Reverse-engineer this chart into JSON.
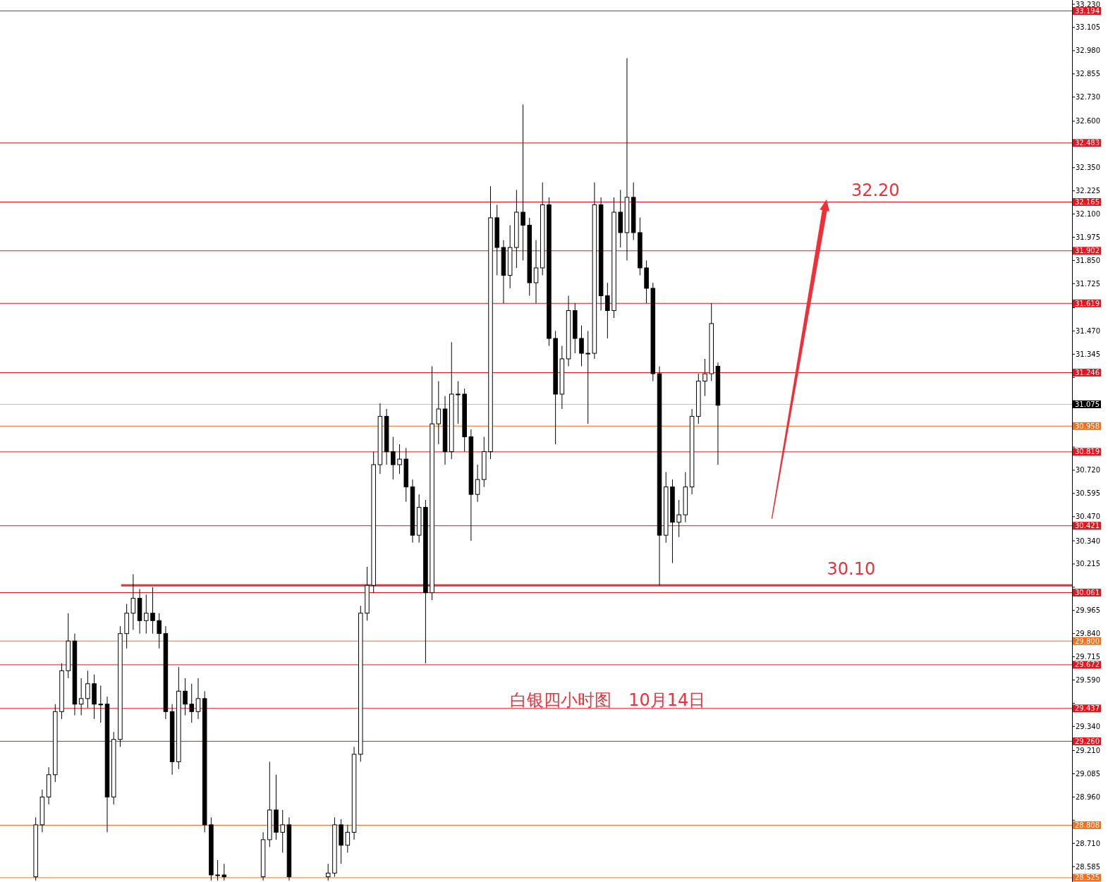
{
  "chart_data": {
    "type": "candlestick",
    "title": "白银四小时图　10月14日",
    "categories": [
      null,
      null,
      null,
      null,
      null,
      null,
      null,
      null,
      null,
      null,
      null,
      null,
      null,
      null,
      null,
      null,
      null,
      null,
      null,
      null,
      null,
      null,
      null,
      null,
      null,
      null,
      null,
      null,
      null,
      null,
      null,
      null,
      null,
      null,
      null,
      null,
      null,
      null,
      null,
      null,
      null,
      null,
      null,
      null,
      null,
      null,
      null,
      null,
      null,
      null,
      null,
      null,
      null,
      null,
      null,
      null,
      null,
      null,
      null,
      null,
      null,
      null,
      null,
      null,
      null,
      null,
      null,
      null,
      null,
      null,
      null,
      null,
      null,
      null,
      null,
      null,
      null,
      null,
      null,
      null,
      null,
      null,
      null,
      null,
      null,
      null,
      null,
      null,
      null,
      null,
      null,
      null,
      null,
      null,
      null,
      null,
      null,
      null,
      null,
      null,
      null,
      null,
      null,
      null,
      null,
      null,
      null,
      null,
      null,
      null,
      null,
      null,
      null,
      null,
      null,
      null,
      null,
      null,
      null,
      null,
      null,
      null,
      null,
      null,
      null,
      null,
      null,
      null,
      null,
      null,
      null,
      null,
      null,
      null,
      null,
      null,
      null,
      null,
      null,
      null,
      null,
      null,
      null,
      null,
      null,
      null,
      null,
      null,
      null,
      null,
      null,
      null,
      null,
      null,
      null,
      null,
      null,
      null,
      null,
      null,
      null,
      null,
      null,
      null,
      null
    ],
    "ohlc": [
      null,
      null,
      null,
      null,
      null,
      [
        28.53,
        28.85,
        28.51,
        28.81
      ],
      [
        28.81,
        29.0,
        28.77,
        28.96
      ],
      [
        28.96,
        29.12,
        28.92,
        29.08
      ],
      [
        29.08,
        29.46,
        29.04,
        29.42
      ],
      [
        29.42,
        29.68,
        29.38,
        29.64
      ],
      [
        29.64,
        29.95,
        29.6,
        29.8
      ],
      [
        29.8,
        29.84,
        29.4,
        29.46
      ],
      [
        29.46,
        29.6,
        29.4,
        29.49
      ],
      [
        29.49,
        29.64,
        29.44,
        29.57
      ],
      [
        29.57,
        29.62,
        29.38,
        29.46
      ],
      [
        29.46,
        29.56,
        29.36,
        29.46
      ],
      [
        29.46,
        29.5,
        28.77,
        28.96
      ],
      [
        28.96,
        29.31,
        28.92,
        29.27
      ],
      [
        29.27,
        29.88,
        29.23,
        29.84
      ],
      [
        29.84,
        30.0,
        29.76,
        29.95
      ],
      [
        29.95,
        30.16,
        29.86,
        30.03
      ],
      [
        30.03,
        30.08,
        29.84,
        29.91
      ],
      [
        29.91,
        30.05,
        29.84,
        29.95
      ],
      [
        29.95,
        30.09,
        29.84,
        29.91
      ],
      [
        29.91,
        29.95,
        29.76,
        29.84
      ],
      [
        29.84,
        29.88,
        29.38,
        29.42
      ],
      [
        29.42,
        29.46,
        29.08,
        29.15
      ],
      [
        29.15,
        29.66,
        29.11,
        29.53
      ],
      [
        29.53,
        29.6,
        29.4,
        29.46
      ],
      [
        29.46,
        29.57,
        29.36,
        29.42
      ],
      [
        29.42,
        29.6,
        29.38,
        29.49
      ],
      [
        29.49,
        29.53,
        28.77,
        28.81
      ],
      [
        28.81,
        28.85,
        28.51,
        28.54
      ],
      [
        28.54,
        28.62,
        28.51,
        28.54
      ],
      [
        28.54,
        28.6,
        28.51,
        28.53
      ],
      null,
      null,
      null,
      null,
      null,
      [
        28.53,
        28.77,
        28.51,
        28.73
      ],
      [
        28.73,
        29.15,
        28.69,
        28.89
      ],
      [
        28.89,
        29.08,
        28.73,
        28.77
      ],
      [
        28.77,
        28.89,
        28.66,
        28.81
      ],
      [
        28.81,
        28.85,
        28.51,
        28.53
      ],
      null,
      null,
      null,
      null,
      null,
      [
        28.53,
        28.6,
        28.51,
        28.55
      ],
      [
        28.55,
        28.85,
        28.53,
        28.81
      ],
      [
        28.81,
        28.84,
        28.6,
        28.7
      ],
      [
        28.7,
        28.81,
        28.66,
        28.77
      ],
      [
        28.77,
        29.23,
        28.73,
        29.19
      ],
      [
        29.19,
        29.99,
        29.15,
        29.95
      ],
      [
        29.95,
        30.2,
        29.91,
        30.1
      ],
      [
        30.1,
        30.82,
        30.06,
        30.75
      ],
      [
        30.75,
        31.08,
        30.7,
        31.01
      ],
      [
        31.01,
        31.05,
        30.75,
        30.82
      ],
      [
        30.82,
        30.9,
        30.67,
        30.75
      ],
      [
        30.75,
        30.86,
        30.7,
        30.78
      ],
      [
        30.78,
        30.84,
        30.55,
        30.63
      ],
      [
        30.63,
        30.67,
        30.33,
        30.37
      ],
      [
        30.37,
        30.59,
        30.33,
        30.52
      ],
      [
        30.52,
        30.56,
        29.68,
        30.06
      ],
      [
        30.06,
        31.28,
        30.02,
        30.97
      ],
      [
        30.97,
        31.2,
        30.86,
        31.05
      ],
      [
        31.05,
        31.12,
        30.75,
        30.82
      ],
      [
        30.82,
        31.41,
        30.78,
        31.13
      ],
      [
        31.13,
        31.2,
        30.97,
        31.13
      ],
      [
        31.13,
        31.16,
        30.82,
        30.9
      ],
      [
        30.9,
        30.94,
        30.34,
        30.59
      ],
      [
        30.59,
        30.75,
        30.55,
        30.67
      ],
      [
        30.67,
        30.9,
        30.63,
        30.82
      ],
      [
        30.82,
        32.25,
        30.78,
        32.08
      ],
      [
        32.08,
        32.15,
        31.77,
        31.92
      ],
      [
        31.92,
        31.96,
        31.62,
        31.77
      ],
      [
        31.77,
        32.04,
        31.7,
        31.92
      ],
      [
        31.92,
        32.23,
        31.81,
        32.11
      ],
      [
        32.11,
        32.69,
        31.85,
        32.04
      ],
      [
        32.04,
        32.08,
        31.66,
        31.73
      ],
      [
        31.73,
        31.96,
        31.62,
        31.81
      ],
      [
        31.81,
        32.27,
        31.77,
        32.15
      ],
      [
        32.15,
        32.19,
        31.39,
        31.43
      ],
      [
        31.43,
        31.47,
        30.86,
        31.13
      ],
      [
        31.13,
        31.39,
        31.05,
        31.32
      ],
      [
        31.32,
        31.66,
        31.28,
        31.58
      ],
      [
        31.58,
        31.62,
        31.35,
        31.43
      ],
      [
        31.43,
        31.5,
        31.28,
        31.35
      ],
      [
        31.35,
        31.47,
        30.97,
        31.35
      ],
      [
        31.35,
        32.27,
        31.32,
        32.15
      ],
      [
        32.15,
        32.19,
        31.58,
        31.66
      ],
      [
        31.66,
        31.73,
        31.43,
        31.58
      ],
      [
        31.58,
        32.19,
        31.54,
        32.11
      ],
      [
        32.11,
        32.23,
        31.92,
        32.0
      ],
      [
        32.0,
        32.94,
        31.85,
        32.19
      ],
      [
        32.19,
        32.27,
        31.96,
        32.0
      ],
      [
        32.0,
        32.08,
        31.77,
        31.81
      ],
      [
        31.81,
        31.85,
        31.62,
        31.7
      ],
      [
        31.7,
        31.73,
        31.2,
        31.24
      ],
      [
        31.24,
        31.28,
        30.1,
        30.37
      ],
      [
        30.37,
        30.71,
        30.33,
        30.63
      ],
      [
        30.63,
        30.67,
        30.22,
        30.44
      ],
      [
        30.44,
        30.56,
        30.36,
        30.48
      ],
      [
        30.48,
        30.71,
        30.44,
        30.63
      ],
      [
        30.63,
        31.05,
        30.59,
        31.01
      ],
      [
        31.01,
        31.24,
        30.97,
        31.2
      ],
      [
        31.2,
        31.32,
        31.12,
        31.24
      ],
      [
        31.24,
        31.62,
        31.2,
        31.51
      ],
      [
        31.28,
        31.3,
        30.75,
        31.07
      ],
      null,
      null,
      null,
      null,
      null,
      null,
      null,
      null,
      null,
      null,
      null,
      null,
      null,
      null,
      null,
      null,
      null,
      null,
      null,
      null,
      null,
      null,
      null,
      null,
      null,
      null,
      null,
      null,
      null,
      null,
      null,
      null,
      null,
      null,
      null,
      null,
      null,
      null,
      null,
      null,
      null,
      null,
      null,
      null,
      null,
      null,
      null,
      null,
      null,
      null,
      null,
      null,
      null,
      null
    ],
    "ylim": [
      28.502,
      33.253
    ],
    "yticks": [
      {
        "value": 28.585,
        "label": "28.585"
      },
      {
        "value": 28.71,
        "label": "28.710"
      },
      {
        "value": 28.835,
        "label": null
      },
      {
        "value": 28.96,
        "label": "28.960"
      },
      {
        "value": 29.085,
        "label": "29.085"
      },
      {
        "value": 29.21,
        "label": "29.210"
      },
      {
        "value": 29.34,
        "label": "29.340"
      },
      {
        "value": 29.465,
        "label": null
      },
      {
        "value": 29.59,
        "label": "29.590"
      },
      {
        "value": 29.715,
        "label": "29.715"
      },
      {
        "value": 29.84,
        "label": "29.840"
      },
      {
        "value": 29.965,
        "label": "29.965"
      },
      {
        "value": 30.09,
        "label": null
      },
      {
        "value": 30.215,
        "label": "30.215"
      },
      {
        "value": 30.34,
        "label": "30.340"
      },
      {
        "value": 30.47,
        "label": "30.470"
      },
      {
        "value": 30.595,
        "label": "30.595"
      },
      {
        "value": 30.72,
        "label": "30.720"
      },
      {
        "value": 30.845,
        "label": null
      },
      {
        "value": 31.095,
        "label": null
      },
      {
        "value": 31.22,
        "label": null
      },
      {
        "value": 31.345,
        "label": "31.345"
      },
      {
        "value": 31.47,
        "label": "31.470"
      },
      {
        "value": 31.595,
        "label": null
      },
      {
        "value": 31.725,
        "label": "31.725"
      },
      {
        "value": 31.85,
        "label": "31.850"
      },
      {
        "value": 31.975,
        "label": "31.975"
      },
      {
        "value": 32.1,
        "label": "32.100"
      },
      {
        "value": 32.225,
        "label": "32.225"
      },
      {
        "value": 32.35,
        "label": "32.350"
      },
      {
        "value": 32.6,
        "label": "32.600"
      },
      {
        "value": 32.73,
        "label": "32.730"
      },
      {
        "value": 32.855,
        "label": "32.855"
      },
      {
        "value": 32.98,
        "label": "32.980"
      },
      {
        "value": 33.105,
        "label": "33.105"
      },
      {
        "value": 33.23,
        "label": "33.230"
      }
    ],
    "ref_lines": [
      {
        "axis": "y",
        "value": 33.194,
        "label": "33.194",
        "color": "#e8141b"
      },
      {
        "axis": "y",
        "value": 32.483,
        "label": "32.483",
        "color": "#e8141b"
      },
      {
        "axis": "y",
        "value": 32.165,
        "label": "32.165",
        "color": "#e8141b"
      },
      {
        "axis": "y",
        "value": 31.902,
        "label": "31.902",
        "color": "#e8141b"
      },
      {
        "axis": "y",
        "value": 31.619,
        "label": "31.619",
        "color": "#e8141b"
      },
      {
        "axis": "y",
        "value": 31.246,
        "label": "31.246",
        "color": "#e8141b"
      },
      {
        "axis": "y",
        "value": 31.075,
        "label": "31.075",
        "color": "#c0c0c0"
      },
      {
        "axis": "y",
        "value": 30.958,
        "label": "30.958",
        "color": "#f07020"
      },
      {
        "axis": "y",
        "value": 30.819,
        "label": "30.819",
        "color": "#e8141b"
      },
      {
        "axis": "y",
        "value": 30.421,
        "label": "30.421",
        "color": "#e8141b"
      },
      {
        "axis": "y",
        "value": 30.061,
        "label": "30.061",
        "color": "#e8141b"
      },
      {
        "axis": "y",
        "value": 29.8,
        "label": "29.800",
        "color": "#f07020"
      },
      {
        "axis": "y",
        "value": 29.672,
        "label": "29.672",
        "color": "#e8141b"
      },
      {
        "axis": "y",
        "value": 29.437,
        "label": "29.437",
        "color": "#e8141b"
      },
      {
        "axis": "y",
        "value": 29.26,
        "label": "29.260",
        "color": "#e8141b"
      },
      {
        "axis": "y",
        "value": 28.808,
        "label": "28.808",
        "color": "#f07020"
      },
      {
        "axis": "y",
        "value": 28.525,
        "label": "28.525",
        "color": "#f07020"
      }
    ],
    "bands": [
      {
        "axis": "y",
        "from": 30.094,
        "to": 30.106,
        "label": "30.10",
        "color": "#f03038"
      }
    ],
    "annotations": [
      "32.20"
    ]
  }
}
